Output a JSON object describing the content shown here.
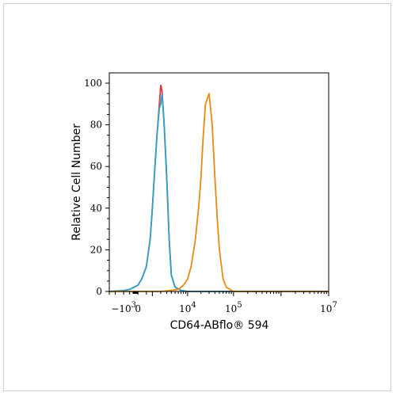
{
  "chart_data": {
    "type": "area",
    "title": "",
    "xlabel": "CD64-ABflo® 594",
    "ylabel": "Relative Cell Number",
    "xscale": "biexponential",
    "ylim": [
      0,
      100
    ],
    "yticks": [
      0,
      20,
      40,
      60,
      80,
      100
    ],
    "xtick_labels": [
      {
        "base": "−10",
        "exp": "3",
        "value": -1000
      },
      {
        "base": "0",
        "exp": "",
        "value": 0
      },
      {
        "base": "10",
        "exp": "4",
        "value": 10000
      },
      {
        "base": "10",
        "exp": "5",
        "value": 100000
      },
      {
        "base": "10",
        "exp": "7",
        "value": 10000000
      }
    ],
    "grid": false,
    "legend": "none",
    "series": [
      {
        "color": "#e8323c",
        "x": [
          -3000,
          -1000,
          -500,
          0,
          200,
          500,
          800,
          1000,
          1200,
          1500,
          1800,
          2000,
          2200,
          2500,
          3000,
          3500,
          4000,
          5000,
          7000,
          10000,
          100000,
          10000000
        ],
        "y": [
          0,
          0.4,
          1,
          3,
          6,
          12,
          25,
          40,
          55,
          75,
          90,
          99,
          96,
          82,
          55,
          25,
          8,
          2,
          0.5,
          0,
          0,
          0
        ]
      },
      {
        "color": "#2aa3c8",
        "x": [
          -3000,
          -1000,
          -500,
          0,
          200,
          500,
          800,
          1000,
          1200,
          1500,
          1800,
          2000,
          2200,
          2500,
          3000,
          3500,
          4000,
          5000,
          7000,
          10000,
          100000,
          10000000
        ],
        "y": [
          0,
          0.4,
          1,
          3,
          6,
          12,
          25,
          40,
          55,
          75,
          88,
          90,
          95,
          82,
          55,
          25,
          8,
          2,
          0.5,
          0,
          0,
          0
        ]
      },
      {
        "color": "#e88a12",
        "x": [
          -3000,
          -1000,
          0,
          2000,
          4000,
          6000,
          8000,
          10000,
          12000,
          15000,
          18000,
          20000,
          22000,
          25000,
          30000,
          35000,
          40000,
          45000,
          50000,
          60000,
          70000,
          100000,
          10000000
        ],
        "y": [
          0,
          0,
          0,
          0,
          0.5,
          1,
          3,
          6,
          12,
          25,
          42,
          55,
          72,
          90,
          95,
          80,
          55,
          35,
          20,
          6,
          2,
          0,
          0
        ]
      }
    ]
  }
}
